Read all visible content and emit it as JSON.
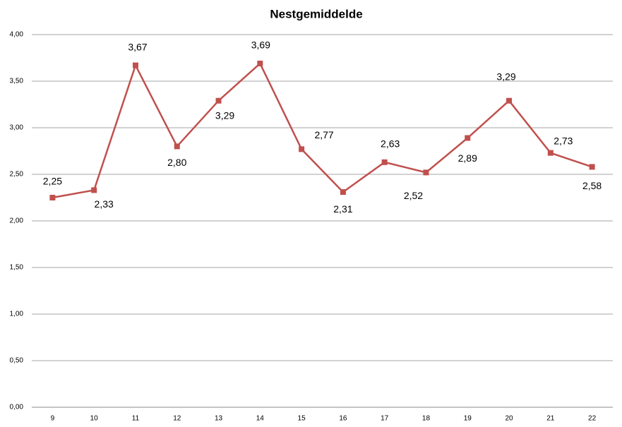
{
  "chart_data": {
    "type": "line",
    "title": "Nestgemiddelde",
    "categories": [
      "9",
      "10",
      "11",
      "12",
      "13",
      "14",
      "15",
      "16",
      "17",
      "18",
      "19",
      "20",
      "21",
      "22"
    ],
    "series": [
      {
        "color": "#c0504d",
        "values": [
          2.25,
          2.33,
          3.67,
          2.8,
          3.29,
          3.69,
          2.77,
          2.31,
          2.63,
          2.52,
          2.89,
          3.29,
          2.73,
          2.58
        ],
        "value_labels": [
          "2,25",
          "2,33",
          "3,67",
          "2,80",
          "3,29",
          "3,69",
          "2,77",
          "2,31",
          "2,63",
          "2,52",
          "2,89",
          "3,29",
          "2,73",
          "2,58"
        ]
      }
    ],
    "ylim": [
      0,
      4
    ],
    "yticks": [
      {
        "value": 0,
        "label": "0,00"
      },
      {
        "value": 0.5,
        "label": "0,50"
      },
      {
        "value": 1,
        "label": "1,00"
      },
      {
        "value": 1.5,
        "label": "1,50"
      },
      {
        "value": 2,
        "label": "2,00"
      },
      {
        "value": 2.5,
        "label": "2,50"
      },
      {
        "value": 3,
        "label": "3,00"
      },
      {
        "value": 3.5,
        "label": "3,50"
      },
      {
        "value": 4,
        "label": "4,00"
      }
    ],
    "grid": true
  }
}
